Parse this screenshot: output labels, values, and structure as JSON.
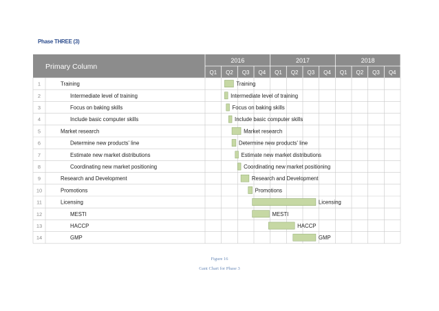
{
  "phase_title": "Phase THREE (3)",
  "figure_label": "Figure 16",
  "figure_caption": "Gant Chart for Phase 3",
  "colors": {
    "header_bg": "#8c8c8c",
    "bar_fill": "#c6d8a4",
    "bar_stroke": "#8aa66a",
    "grid": "#c9c9c9",
    "row_number": "#8a8a8a"
  },
  "chart_data": {
    "type": "gantt",
    "column_title": "Primary Column",
    "years": [
      "2016",
      "2017",
      "2018"
    ],
    "quarters": [
      "Q1",
      "Q2",
      "Q3",
      "Q4",
      "Q1",
      "Q2",
      "Q3",
      "Q4",
      "Q1",
      "Q2",
      "Q3",
      "Q4"
    ],
    "tasks": [
      {
        "num": "1",
        "name": "Training",
        "indent": 0,
        "start": 1.2,
        "end": 1.75
      },
      {
        "num": "2",
        "name": "Intermediate level of training",
        "indent": 1,
        "start": 1.2,
        "end": 1.4
      },
      {
        "num": "3",
        "name": "Focus on baking skills",
        "indent": 1,
        "start": 1.3,
        "end": 1.5
      },
      {
        "num": "4",
        "name": "Include basic computer skills",
        "indent": 1,
        "start": 1.45,
        "end": 1.65
      },
      {
        "num": "5",
        "name": "Market research",
        "indent": 0,
        "start": 1.65,
        "end": 2.2
      },
      {
        "num": "6",
        "name": "Determine new products' line",
        "indent": 1,
        "start": 1.65,
        "end": 1.9
      },
      {
        "num": "7",
        "name": "Estimate new market distributions",
        "indent": 1,
        "start": 1.85,
        "end": 2.05
      },
      {
        "num": "8",
        "name": "Coordinating new market positioning",
        "indent": 1,
        "start": 2.0,
        "end": 2.2
      },
      {
        "num": "9",
        "name": "Research and Development",
        "indent": 0,
        "start": 2.2,
        "end": 2.7
      },
      {
        "num": "10",
        "name": "Promotions",
        "indent": 0,
        "start": 2.65,
        "end": 2.9
      },
      {
        "num": "11",
        "name": "Licensing",
        "indent": 0,
        "start": 2.9,
        "end": 6.8
      },
      {
        "num": "12",
        "name": "MESTI",
        "indent": 1,
        "start": 2.9,
        "end": 3.95
      },
      {
        "num": "13",
        "name": "HACCP",
        "indent": 1,
        "start": 3.9,
        "end": 5.5
      },
      {
        "num": "14",
        "name": "GMP",
        "indent": 1,
        "start": 5.4,
        "end": 6.8
      }
    ]
  }
}
